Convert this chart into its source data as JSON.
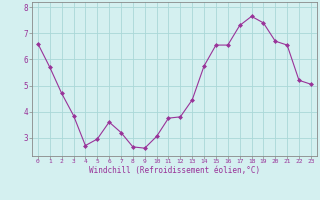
{
  "x": [
    0,
    1,
    2,
    3,
    4,
    5,
    6,
    7,
    8,
    9,
    10,
    11,
    12,
    13,
    14,
    15,
    16,
    17,
    18,
    19,
    20,
    21,
    22,
    23
  ],
  "y": [
    6.6,
    5.7,
    4.7,
    3.85,
    2.7,
    2.95,
    3.6,
    3.2,
    2.65,
    2.6,
    3.05,
    3.75,
    3.8,
    4.45,
    5.75,
    6.55,
    6.55,
    7.3,
    7.65,
    7.4,
    6.7,
    6.55,
    5.2,
    5.05
  ],
  "line_color": "#993399",
  "marker": "D",
  "marker_size": 2,
  "bg_color": "#d4f0f0",
  "grid_color": "#aad8d8",
  "xlabel": "Windchill (Refroidissement éolien,°C)",
  "xlabel_color": "#993399",
  "tick_color": "#993399",
  "ylim": [
    2.3,
    8.2
  ],
  "yticks": [
    3,
    4,
    5,
    6,
    7,
    8
  ],
  "xlim": [
    -0.5,
    23.5
  ],
  "xticks": [
    0,
    1,
    2,
    3,
    4,
    5,
    6,
    7,
    8,
    9,
    10,
    11,
    12,
    13,
    14,
    15,
    16,
    17,
    18,
    19,
    20,
    21,
    22,
    23
  ],
  "figsize": [
    3.2,
    2.0
  ],
  "dpi": 100
}
